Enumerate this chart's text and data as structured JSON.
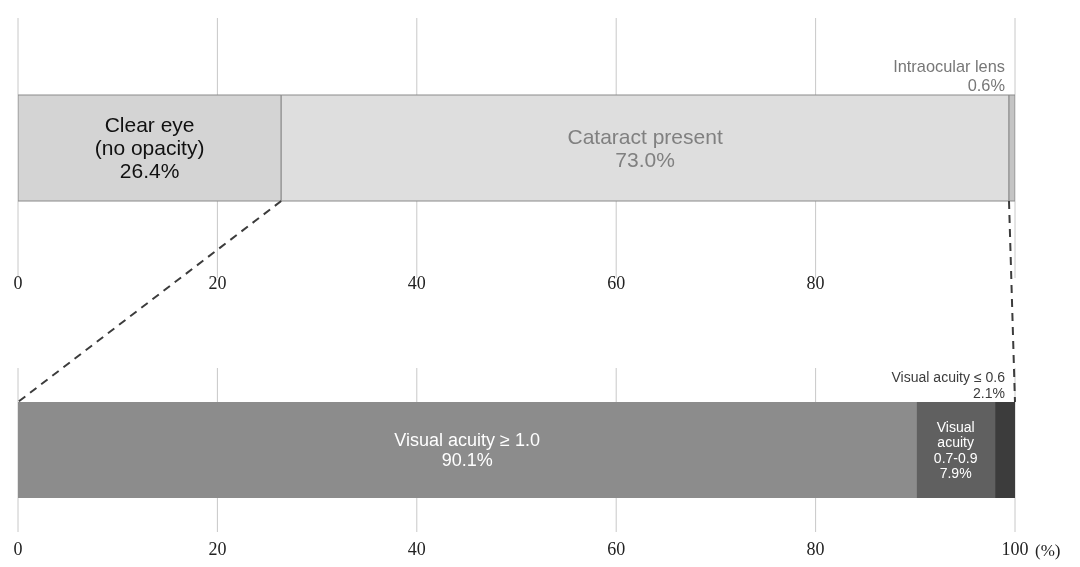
{
  "chart_data": [
    {
      "type": "bar",
      "orientation": "horizontal",
      "stacked": true,
      "categories": [
        null
      ],
      "xlim": [
        0,
        100
      ],
      "xticks": [
        0,
        20,
        40,
        60,
        80,
        {
          "value": 100,
          "label": null
        }
      ],
      "grid": "x",
      "series": [
        {
          "name": "Clear eye (no opacity)",
          "color": "#d4d4d4",
          "values": [
            26.4
          ],
          "value_labels": [
            "26.4%"
          ]
        },
        {
          "name": "Cataract present",
          "color": "#dedede",
          "values": [
            73.0
          ],
          "value_labels": [
            "73.0%"
          ]
        },
        {
          "name": "Intraocular lens",
          "color": "#c4c4c4",
          "values": [
            0.6
          ],
          "value_labels": [
            "0.6%"
          ]
        }
      ]
    },
    {
      "type": "bar",
      "orientation": "horizontal",
      "stacked": true,
      "categories": [
        null
      ],
      "xlim": [
        0,
        100
      ],
      "xticks": [
        0,
        20,
        40,
        60,
        80,
        100
      ],
      "xlabel": "(%)",
      "grid": "x",
      "series": [
        {
          "name": "Visual acuity ≥ 1.0",
          "color": "#8c8c8c",
          "values": [
            90.1
          ],
          "value_labels": [
            "90.1%"
          ]
        },
        {
          "name": "Visual acuity 0.7-0.9",
          "color": "#606060",
          "values": [
            7.9
          ],
          "value_labels": [
            "7.9%"
          ]
        },
        {
          "name": "Visual acuity ≤ 0.6",
          "color": "#3c3c3c",
          "values": [
            2.1
          ],
          "value_labels": [
            "2.1%"
          ]
        }
      ]
    }
  ]
}
